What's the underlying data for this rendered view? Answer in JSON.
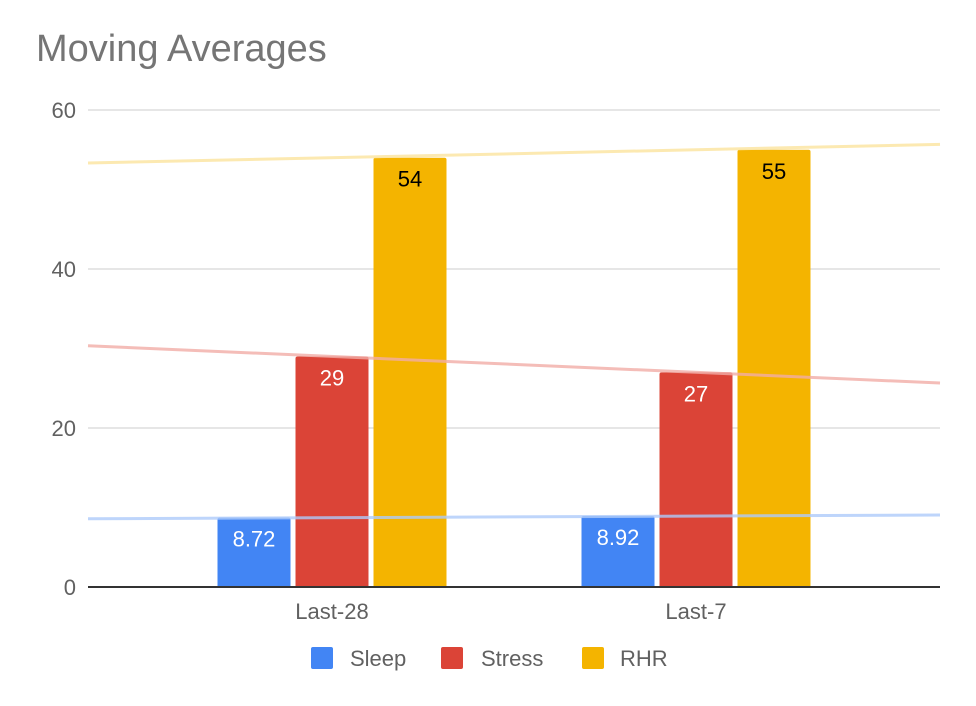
{
  "chart_data": {
    "type": "bar",
    "title": "Moving Averages",
    "categories": [
      "Last-28",
      "Last-7"
    ],
    "series": [
      {
        "name": "Sleep",
        "values": [
          8.72,
          8.92
        ],
        "color": "#4285f4",
        "trendline_color": "#aecbfa",
        "label_color": "#ffffff"
      },
      {
        "name": "Stress",
        "values": [
          29,
          27
        ],
        "color": "#db4437",
        "trendline_color": "#f1aca6",
        "label_color": "#ffffff"
      },
      {
        "name": "RHR",
        "values": [
          54,
          55
        ],
        "color": "#f4b400",
        "trendline_color": "#fbe39d",
        "label_color": "#000000"
      }
    ],
    "data_labels": [
      [
        "8.72",
        "8.92"
      ],
      [
        "29",
        "27"
      ],
      [
        "54",
        "55"
      ]
    ],
    "y_ticks": [
      0,
      20,
      40,
      60
    ],
    "ylim": [
      0,
      60
    ],
    "grid": true,
    "trendlines": true,
    "legend_position": "bottom"
  }
}
